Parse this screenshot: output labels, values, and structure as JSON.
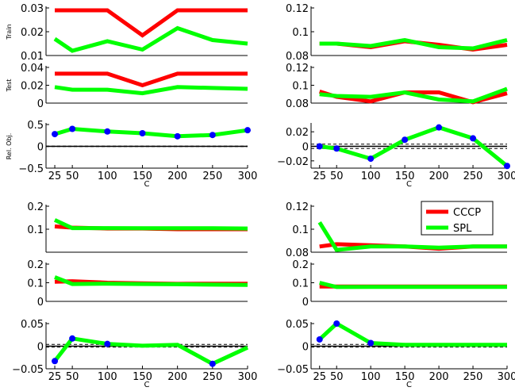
{
  "figure": {
    "background": "#ffffff"
  },
  "colors": {
    "CCCP": "#ff0000",
    "SPL": "#00ff00",
    "marker": "#0000ff",
    "zeroline": "#000000"
  },
  "legend": {
    "placement": "upper-right of bottom-right group",
    "entries": [
      {
        "name": "CCCP",
        "color": "#ff0000"
      },
      {
        "name": "SPL",
        "color": "#00ff00"
      }
    ]
  },
  "chart_data": [
    {
      "type": "line",
      "group": "top-left",
      "panels": [
        {
          "role": "train",
          "ylabel": "Train",
          "ylim": [
            0.01,
            0.03
          ],
          "yticks": [
            "0.01",
            "0.02",
            "0.03"
          ],
          "x": [
            25,
            50,
            100,
            150,
            200,
            250,
            300
          ],
          "series": [
            {
              "name": "CCCP",
              "values": [
                0.029,
                0.029,
                0.029,
                0.0185,
                0.029,
                0.029,
                0.029
              ]
            },
            {
              "name": "SPL",
              "values": [
                0.017,
                0.012,
                0.016,
                0.0125,
                0.0215,
                0.0165,
                0.015
              ]
            }
          ]
        },
        {
          "role": "test",
          "ylabel": "Test",
          "ylim": [
            0,
            0.04
          ],
          "yticks": [
            "0",
            "0.02",
            "0.04"
          ],
          "x": [
            25,
            50,
            100,
            150,
            200,
            250,
            300
          ],
          "series": [
            {
              "name": "CCCP",
              "values": [
                0.033,
                0.033,
                0.033,
                0.02,
                0.033,
                0.033,
                0.033
              ]
            },
            {
              "name": "SPL",
              "values": [
                0.018,
                0.015,
                0.015,
                0.011,
                0.018,
                0.017,
                0.016
              ]
            }
          ]
        },
        {
          "role": "relobj",
          "ylabel": "Rel. Obj.",
          "xlabel": "C",
          "ylim": [
            -0.5,
            0.5
          ],
          "yticks": [
            "−0.5",
            "0",
            "0.5"
          ],
          "xticks": [
            "25",
            "50",
            "100",
            "150",
            "200",
            "250",
            "300"
          ],
          "x": [
            25,
            50,
            100,
            150,
            200,
            250,
            300
          ],
          "dashed": [
            -0.005,
            0.005
          ],
          "series": [
            {
              "name": "SPL",
              "values": [
                0.28,
                0.4,
                0.34,
                0.3,
                0.23,
                0.26,
                0.37
              ],
              "markers": true
            }
          ]
        }
      ]
    },
    {
      "type": "line",
      "group": "top-right",
      "panels": [
        {
          "role": "train",
          "ylabel": "",
          "ylim": [
            0.08,
            0.12
          ],
          "yticks": [
            "0.08",
            "0.1",
            "0.12"
          ],
          "x": [
            25,
            50,
            100,
            150,
            200,
            250,
            300
          ],
          "series": [
            {
              "name": "CCCP",
              "values": [
                0.09,
                0.09,
                0.087,
                0.092,
                0.089,
                0.085,
                0.089
              ]
            },
            {
              "name": "SPL",
              "values": [
                0.09,
                0.09,
                0.088,
                0.093,
                0.087,
                0.086,
                0.093
              ]
            }
          ]
        },
        {
          "role": "test",
          "ylabel": "",
          "ylim": [
            0.08,
            0.12
          ],
          "yticks": [
            "0.08",
            "0.1",
            "0.12"
          ],
          "x": [
            25,
            50,
            100,
            150,
            200,
            250,
            300
          ],
          "series": [
            {
              "name": "CCCP",
              "values": [
                0.093,
                0.087,
                0.082,
                0.092,
                0.092,
                0.081,
                0.091
              ]
            },
            {
              "name": "SPL",
              "values": [
                0.09,
                0.088,
                0.087,
                0.092,
                0.084,
                0.082,
                0.096
              ]
            }
          ]
        },
        {
          "role": "relobj",
          "ylabel": "",
          "xlabel": "C",
          "ylim": [
            -0.03,
            0.03
          ],
          "yticks": [
            "−0.02",
            "0",
            "0.02"
          ],
          "xticks": [
            "25",
            "50",
            "100",
            "150",
            "200",
            "250",
            "300"
          ],
          "x": [
            25,
            50,
            100,
            150,
            200,
            250,
            300
          ],
          "dashed": [
            -0.003,
            0.003
          ],
          "series": [
            {
              "name": "SPL",
              "values": [
                0.0,
                -0.003,
                -0.017,
                0.009,
                0.026,
                0.011,
                -0.027
              ],
              "markers": true
            }
          ]
        }
      ]
    },
    {
      "type": "line",
      "group": "bottom-left",
      "panels": [
        {
          "role": "train",
          "ylabel": "",
          "ylim": [
            0,
            0.2
          ],
          "yticks": [
            "0.1",
            "0.2"
          ],
          "x": [
            25,
            50,
            100,
            150,
            200,
            250,
            300
          ],
          "series": [
            {
              "name": "CCCP",
              "values": [
                0.112,
                0.107,
                0.103,
                0.103,
                0.1,
                0.1,
                0.1
              ]
            },
            {
              "name": "SPL",
              "values": [
                0.14,
                0.105,
                0.105,
                0.104,
                0.104,
                0.104,
                0.103
              ]
            }
          ]
        },
        {
          "role": "test",
          "ylabel": "",
          "ylim": [
            0,
            0.2
          ],
          "yticks": [
            "0",
            "0.1",
            "0.2"
          ],
          "x": [
            25,
            50,
            100,
            150,
            200,
            250,
            300
          ],
          "series": [
            {
              "name": "CCCP",
              "values": [
                0.105,
                0.108,
                0.1,
                0.097,
                0.094,
                0.095,
                0.095
              ]
            },
            {
              "name": "SPL",
              "values": [
                0.13,
                0.093,
                0.095,
                0.093,
                0.092,
                0.09,
                0.088
              ]
            }
          ]
        },
        {
          "role": "relobj",
          "ylabel": "",
          "xlabel": "C",
          "ylim": [
            -0.05,
            0.05
          ],
          "yticks": [
            "−0.05",
            "0",
            "0.05"
          ],
          "xticks": [
            "25",
            "50",
            "100",
            "150",
            "200",
            "250",
            "300"
          ],
          "x": [
            25,
            50,
            100,
            150,
            200,
            250,
            300
          ],
          "dashed": [
            -0.002,
            0.004
          ],
          "series": [
            {
              "name": "SPL",
              "values": [
                -0.033,
                0.017,
                0.005,
                0.001,
                0.003,
                -0.039,
                -0.003
              ],
              "markers_at": [
                0,
                1,
                2,
                5
              ]
            }
          ]
        }
      ]
    },
    {
      "type": "line",
      "group": "bottom-right",
      "panels": [
        {
          "role": "train",
          "ylabel": "",
          "ylim": [
            0.08,
            0.12
          ],
          "yticks": [
            "0.08",
            "0.1",
            "0.12"
          ],
          "x": [
            25,
            50,
            100,
            150,
            200,
            250,
            300
          ],
          "series": [
            {
              "name": "CCCP",
              "values": [
                0.085,
                0.087,
                0.086,
                0.085,
                0.083,
                0.085,
                0.085
              ]
            },
            {
              "name": "SPL",
              "values": [
                0.106,
                0.082,
                0.085,
                0.085,
                0.084,
                0.085,
                0.085
              ]
            }
          ]
        },
        {
          "role": "test",
          "ylabel": "",
          "ylim": [
            0,
            0.2
          ],
          "yticks": [
            "0",
            "0.1",
            "0.2"
          ],
          "x": [
            25,
            50,
            100,
            150,
            200,
            250,
            300
          ],
          "series": [
            {
              "name": "CCCP",
              "values": [
                0.08,
                0.08,
                0.08,
                0.08,
                0.08,
                0.08,
                0.08
              ]
            },
            {
              "name": "SPL",
              "values": [
                0.1,
                0.077,
                0.078,
                0.078,
                0.078,
                0.078,
                0.078
              ]
            }
          ]
        },
        {
          "role": "relobj",
          "ylabel": "",
          "xlabel": "C",
          "ylim": [
            -0.05,
            0.05
          ],
          "yticks": [
            "−0.05",
            "0",
            "0.05"
          ],
          "xticks": [
            "25",
            "50",
            "100",
            "150",
            "200",
            "250",
            "300"
          ],
          "x": [
            25,
            50,
            100,
            150,
            200,
            250,
            300
          ],
          "dashed": [
            -0.002,
            0.004
          ],
          "series": [
            {
              "name": "SPL",
              "values": [
                0.015,
                0.05,
                0.007,
                0.003,
                0.003,
                0.003,
                0.003
              ],
              "markers_at": [
                0,
                1,
                2
              ]
            }
          ]
        }
      ]
    }
  ]
}
